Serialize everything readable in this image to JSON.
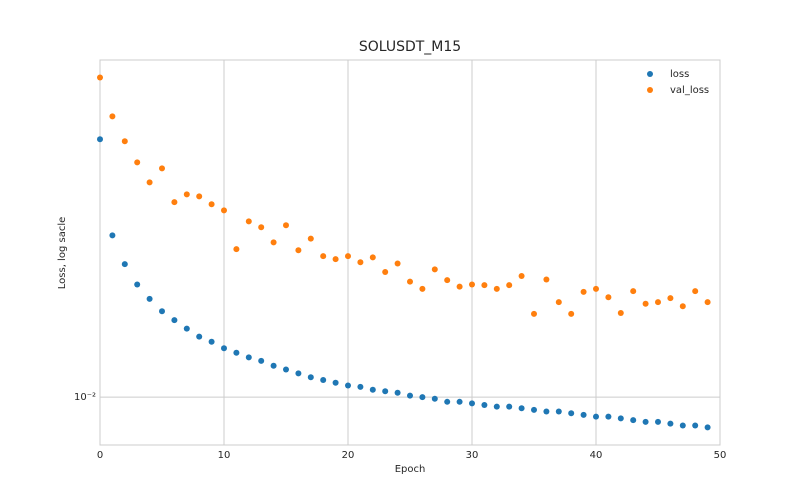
{
  "chart_data": {
    "type": "scatter",
    "title": "SOLUSDT_M15",
    "x_label": "Epoch",
    "y_label": "Loss, log sacle",
    "log_y": true,
    "grid": true,
    "legend": "upper right",
    "x": [
      0,
      1,
      2,
      3,
      4,
      5,
      6,
      7,
      8,
      9,
      10,
      11,
      12,
      13,
      14,
      15,
      16,
      17,
      18,
      19,
      20,
      21,
      22,
      23,
      24,
      25,
      26,
      27,
      28,
      29,
      30,
      31,
      32,
      33,
      34,
      35,
      36,
      37,
      38,
      39,
      40,
      41,
      42,
      43,
      44,
      45,
      46,
      47,
      48,
      49
    ],
    "series": [
      {
        "name": "loss",
        "color": "#1f77b4",
        "values": [
          0.0546,
          0.029,
          0.024,
          0.021,
          0.0191,
          0.0176,
          0.0166,
          0.0157,
          0.0149,
          0.0144,
          0.0138,
          0.0134,
          0.013,
          0.0127,
          0.0123,
          0.012,
          0.0117,
          0.0114,
          0.0112,
          0.011,
          0.0108,
          0.0107,
          0.0105,
          0.0104,
          0.0103,
          0.0101,
          0.01,
          0.0099,
          0.0097,
          0.0097,
          0.0096,
          0.0095,
          0.0094,
          0.0094,
          0.0093,
          0.0092,
          0.0091,
          0.0091,
          0.009,
          0.0089,
          0.0088,
          0.0088,
          0.0087,
          0.0086,
          0.0085,
          0.0085,
          0.0084,
          0.0083,
          0.0083,
          0.0082
        ]
      },
      {
        "name": "val_loss",
        "color": "#ff7f0e",
        "values": [
          0.082,
          0.0635,
          0.0539,
          0.0469,
          0.0411,
          0.0451,
          0.0361,
          0.038,
          0.0375,
          0.0356,
          0.0342,
          0.0265,
          0.0318,
          0.0306,
          0.0277,
          0.031,
          0.0263,
          0.0284,
          0.0253,
          0.0248,
          0.0253,
          0.0243,
          0.0251,
          0.0228,
          0.0241,
          0.0214,
          0.0204,
          0.0232,
          0.0216,
          0.0207,
          0.021,
          0.0209,
          0.0204,
          0.0209,
          0.0222,
          0.0173,
          0.0217,
          0.0187,
          0.0173,
          0.02,
          0.0204,
          0.0193,
          0.0174,
          0.0201,
          0.0185,
          0.0187,
          0.0192,
          0.0182,
          0.0201,
          0.0187
        ]
      }
    ],
    "xlim": [
      0,
      50
    ],
    "xticks": [
      0,
      10,
      20,
      30,
      40,
      50
    ],
    "ylim": [
      0.0073,
      0.092
    ],
    "yticks": [
      {
        "value": 0.01,
        "label": "10⁻²"
      }
    ]
  }
}
